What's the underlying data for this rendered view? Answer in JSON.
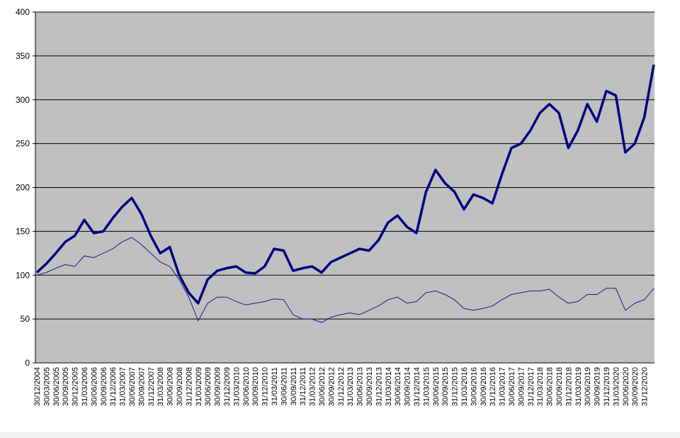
{
  "chart_data": {
    "type": "line",
    "categories": [
      "30/12/2004",
      "30/03/2005",
      "30/06/2005",
      "30/09/2005",
      "30/12/2005",
      "31/03/2006",
      "30/06/2006",
      "30/09/2006",
      "31/12/2006",
      "31/03/2007",
      "30/06/2007",
      "30/09/2007",
      "31/12/2007",
      "31/03/2008",
      "30/06/2008",
      "30/09/2008",
      "31/12/2008",
      "31/03/2009",
      "30/06/2009",
      "30/09/2009",
      "31/12/2009",
      "31/03/2010",
      "30/06/2010",
      "30/09/2010",
      "31/12/2010",
      "31/03/2011",
      "30/06/2011",
      "30/09/2011",
      "31/12/2011",
      "31/03/2012",
      "30/06/2012",
      "30/09/2012",
      "31/12/2012",
      "31/03/2013",
      "30/06/2013",
      "30/09/2013",
      "31/12/2013",
      "31/03/2014",
      "30/06/2014",
      "30/09/2014",
      "31/12/2014",
      "31/03/2015",
      "30/06/2015",
      "30/09/2015",
      "31/12/2015",
      "31/03/2016",
      "30/06/2016",
      "30/09/2016",
      "31/12/2016",
      "31/03/2017",
      "30/06/2017",
      "30/09/2017",
      "31/12/2017",
      "31/03/2018",
      "30/06/2018",
      "30/09/2018",
      "31/12/2018",
      "31/03/2019",
      "30/06/2019",
      "30/09/2019",
      "31/12/2019",
      "31/03/2020",
      "30/06/2020",
      "30/09/2020",
      "31/12/2020",
      null
    ],
    "series": [
      {
        "color": "#000080",
        "width": 3.5,
        "values": [
          103,
          113,
          125,
          138,
          145,
          163,
          148,
          150,
          165,
          178,
          188,
          170,
          145,
          125,
          132,
          100,
          80,
          68,
          95,
          105,
          108,
          110,
          103,
          102,
          110,
          130,
          128,
          105,
          108,
          110,
          103,
          115,
          120,
          125,
          130,
          128,
          140,
          160,
          168,
          155,
          148,
          195,
          220,
          205,
          195,
          175,
          192,
          188,
          182,
          215,
          245,
          250,
          265,
          285,
          295,
          285,
          245,
          265,
          295,
          275,
          310,
          305,
          240,
          250,
          280,
          340
        ]
      },
      {
        "color": "#1a1a80",
        "width": 1,
        "values": [
          100,
          103,
          108,
          112,
          110,
          122,
          120,
          125,
          130,
          138,
          143,
          135,
          125,
          115,
          110,
          95,
          75,
          48,
          68,
          75,
          75,
          70,
          66,
          68,
          70,
          73,
          72,
          55,
          50,
          50,
          46,
          52,
          55,
          57,
          55,
          60,
          65,
          72,
          75,
          68,
          70,
          80,
          82,
          78,
          72,
          62,
          60,
          62,
          65,
          72,
          78,
          80,
          82,
          82,
          84,
          75,
          68,
          70,
          78,
          78,
          85,
          85,
          60,
          68,
          72,
          85
        ]
      }
    ],
    "ylim": [
      0,
      400
    ],
    "yticks": [
      0,
      50,
      100,
      150,
      200,
      250,
      300,
      350,
      400
    ],
    "grid": true,
    "plot_background": "#c0c0c0"
  }
}
